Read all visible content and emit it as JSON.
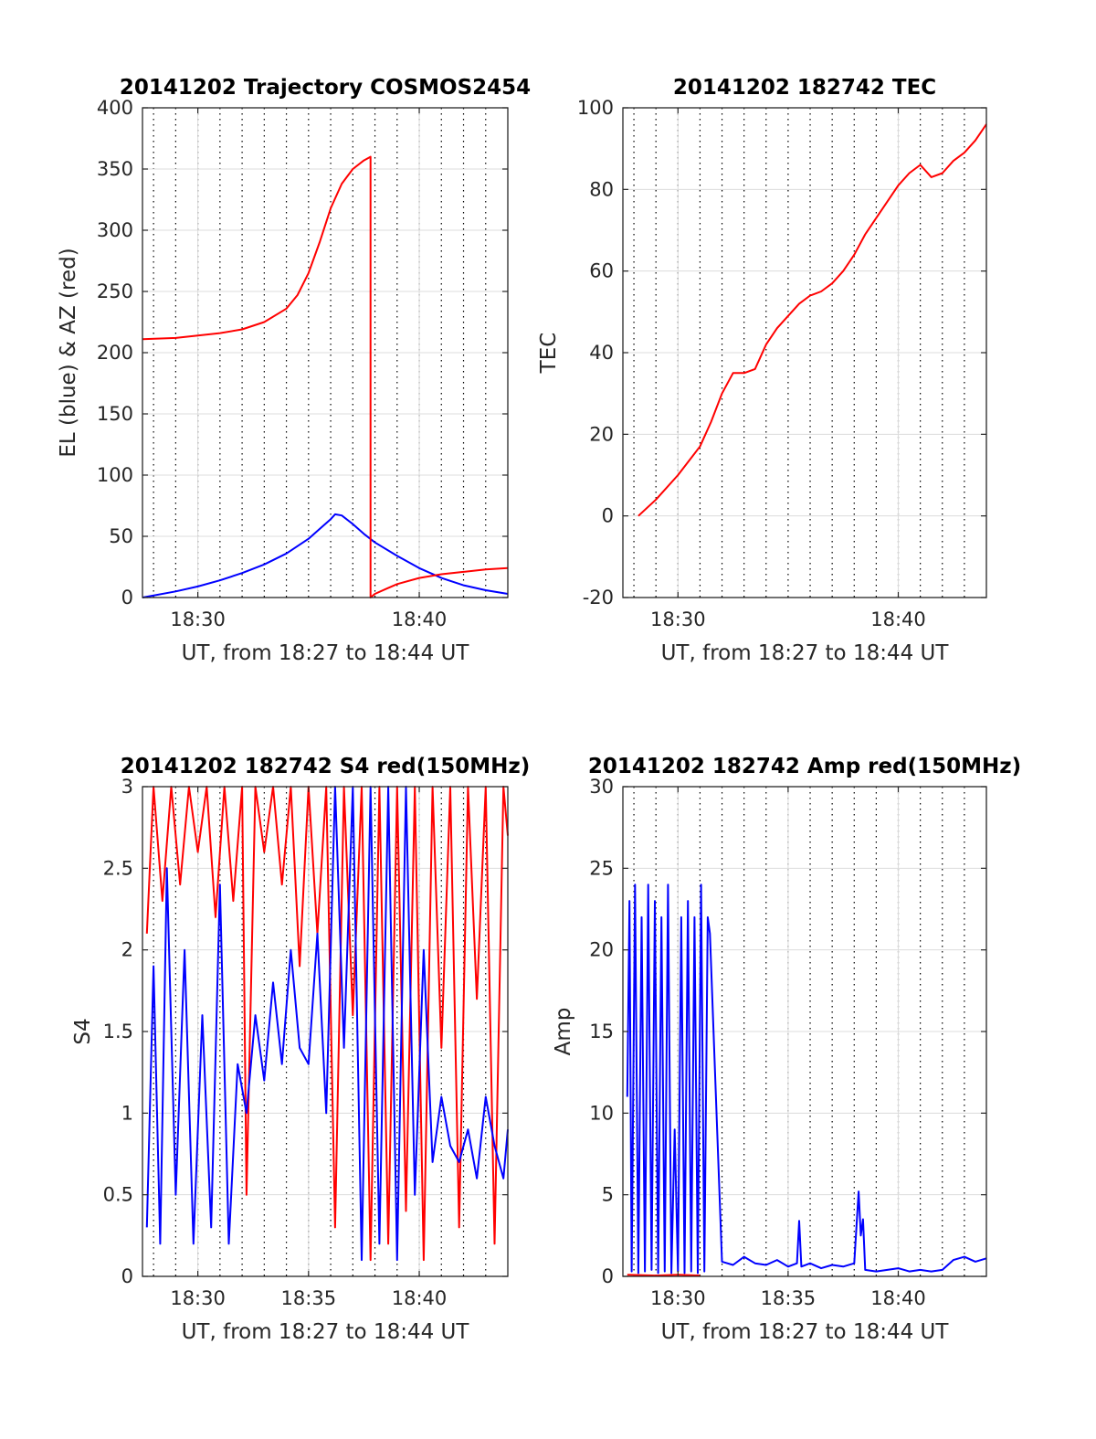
{
  "figure": {
    "background": "#ffffff"
  },
  "chart_data": [
    {
      "type": "line",
      "title": "20141202 Trajectory COSMOS2454",
      "xlabel": "UT, from 18:27 to 18:44 UT",
      "ylabel": "EL (blue) & AZ (red)",
      "xlim": [
        27.5,
        44.0
      ],
      "ylim": [
        0,
        400
      ],
      "yticks": [
        0,
        50,
        100,
        150,
        200,
        250,
        300,
        350,
        400
      ],
      "ytick_labels": [
        "0",
        "50",
        "100",
        "150",
        "200",
        "250",
        "300",
        "350",
        "400"
      ],
      "xticks": [
        30,
        40
      ],
      "xtick_labels": [
        "18:30",
        "18:40"
      ],
      "minor_x_dotted_every_min": true,
      "grid": true,
      "series": [
        {
          "name": "EL",
          "color": "#0000ff",
          "x": [
            27.5,
            29,
            30,
            31,
            32,
            33,
            34,
            35,
            35.5,
            36,
            36.2,
            36.5,
            37,
            37.5,
            38,
            39,
            40,
            41,
            42,
            43,
            44
          ],
          "y": [
            0,
            5,
            9,
            14,
            20,
            27,
            36,
            48,
            56,
            64,
            68,
            67,
            60,
            52,
            45,
            34,
            24,
            16,
            10,
            6,
            3
          ]
        },
        {
          "name": "AZ",
          "color": "#ff0000",
          "x": [
            27.5,
            29,
            30,
            31,
            32,
            33,
            34,
            34.5,
            35,
            35.5,
            36,
            36.5,
            37,
            37.5,
            37.8,
            37.8,
            38,
            38.5,
            39,
            40,
            41,
            42,
            43,
            44
          ],
          "y": [
            211,
            212,
            214,
            216,
            219,
            225,
            236,
            247,
            265,
            290,
            318,
            338,
            350,
            357,
            360,
            0,
            3,
            7,
            11,
            16,
            19,
            21,
            23,
            24
          ]
        }
      ]
    },
    {
      "type": "line",
      "title": "20141202 182742 TEC",
      "xlabel": "UT, from 18:27 to 18:44 UT",
      "ylabel": "TEC",
      "xlim": [
        27.5,
        44.0
      ],
      "ylim": [
        -20,
        100
      ],
      "yticks": [
        -20,
        0,
        20,
        40,
        60,
        80,
        100
      ],
      "ytick_labels": [
        "-20",
        "0",
        "20",
        "40",
        "60",
        "80",
        "100"
      ],
      "xticks": [
        30,
        40
      ],
      "xtick_labels": [
        "18:30",
        "18:40"
      ],
      "minor_x_dotted_every_min": true,
      "grid": true,
      "series": [
        {
          "name": "TEC",
          "color": "#ff0000",
          "x": [
            28.2,
            29,
            30,
            31,
            31.5,
            32,
            32.5,
            33,
            33.5,
            34,
            34.5,
            35,
            35.5,
            36,
            36.5,
            37,
            37.5,
            38,
            38.5,
            39,
            39.5,
            40,
            40.5,
            41,
            41.5,
            42,
            42.5,
            43,
            43.5,
            44
          ],
          "y": [
            0,
            4,
            10,
            17,
            23,
            30,
            35,
            35,
            36,
            42,
            46,
            49,
            52,
            54,
            55,
            57,
            60,
            64,
            69,
            73,
            77,
            81,
            84,
            86,
            83,
            84,
            87,
            89,
            92,
            96
          ]
        }
      ]
    },
    {
      "type": "line",
      "title": "20141202 182742 S4 red(150MHz)",
      "xlabel": "UT, from 18:27 to 18:44 UT",
      "ylabel": "S4",
      "xlim": [
        27.5,
        44.0
      ],
      "ylim": [
        0,
        3
      ],
      "yticks": [
        0,
        0.5,
        1,
        1.5,
        2,
        2.5,
        3
      ],
      "ytick_labels": [
        "0",
        "0.5",
        "1",
        "1.5",
        "2",
        "2.5",
        "3"
      ],
      "xticks": [
        30,
        35,
        40
      ],
      "xtick_labels": [
        "18:30",
        "18:35",
        "18:40"
      ],
      "minor_x_dotted_every_min": true,
      "grid": true,
      "series": [
        {
          "name": "S4 red",
          "color": "#ff0000",
          "x": [
            27.7,
            28,
            28.4,
            28.8,
            29.2,
            29.6,
            30,
            30.4,
            30.8,
            31.2,
            31.6,
            32,
            32.2,
            32.6,
            33,
            33.4,
            33.8,
            34.2,
            34.6,
            35,
            35.4,
            35.8,
            36.2,
            36.6,
            37,
            37.4,
            37.8,
            38.2,
            38.6,
            39,
            39.4,
            39.8,
            40.2,
            40.6,
            41,
            41.4,
            41.8,
            42.2,
            42.6,
            43,
            43.4,
            43.8,
            44
          ],
          "y": [
            2.1,
            3,
            2.3,
            3,
            2.4,
            3,
            2.6,
            3,
            2.2,
            3,
            2.3,
            3,
            0.5,
            3,
            2.6,
            3,
            2.4,
            3,
            1.9,
            3,
            2.1,
            3,
            0.3,
            3,
            1.6,
            3,
            0.1,
            3,
            0.2,
            3,
            0.4,
            3,
            0.1,
            3,
            1.4,
            3,
            0.3,
            3,
            1.7,
            3,
            0.2,
            3,
            2.7
          ]
        },
        {
          "name": "S4 blue",
          "color": "#0000ff",
          "x": [
            27.7,
            28,
            28.3,
            28.6,
            29,
            29.4,
            29.8,
            30.2,
            30.6,
            31,
            31.4,
            31.8,
            32.2,
            32.6,
            33,
            33.4,
            33.8,
            34.2,
            34.6,
            35,
            35.4,
            35.8,
            36.2,
            36.6,
            37,
            37.4,
            37.8,
            38.2,
            38.6,
            39,
            39.4,
            39.8,
            40.2,
            40.6,
            41,
            41.4,
            41.8,
            42.2,
            42.6,
            43,
            43.4,
            43.8,
            44
          ],
          "y": [
            0.3,
            1.9,
            0.2,
            2.5,
            0.5,
            2.0,
            0.2,
            1.6,
            0.3,
            2.4,
            0.2,
            1.3,
            1.0,
            1.6,
            1.2,
            1.8,
            1.3,
            2.0,
            1.4,
            1.3,
            2.1,
            1.0,
            3,
            1.4,
            3,
            0.1,
            3,
            0.2,
            3,
            0.1,
            3,
            0.5,
            2.0,
            0.7,
            1.1,
            0.8,
            0.7,
            0.9,
            0.6,
            1.1,
            0.8,
            0.6,
            0.9
          ]
        }
      ]
    },
    {
      "type": "line",
      "title": "20141202 182742 Amp red(150MHz)",
      "xlabel": "UT, from 18:27 to 18:44 UT",
      "ylabel": "Amp",
      "xlim": [
        27.5,
        44.0
      ],
      "ylim": [
        0,
        30
      ],
      "yticks": [
        0,
        5,
        10,
        15,
        20,
        25,
        30
      ],
      "ytick_labels": [
        "0",
        "5",
        "10",
        "15",
        "20",
        "25",
        "30"
      ],
      "xticks": [
        30,
        35,
        40
      ],
      "xtick_labels": [
        "18:30",
        "18:35",
        "18:40"
      ],
      "minor_x_dotted_every_min": true,
      "grid": true,
      "series": [
        {
          "name": "Amp red",
          "color": "#ff0000",
          "x": [
            27.7,
            29,
            30,
            31
          ],
          "y": [
            0.1,
            0.05,
            0.1,
            0.05
          ]
        },
        {
          "name": "Amp blue",
          "color": "#0000ff",
          "x": [
            27.7,
            27.8,
            27.9,
            28.05,
            28.2,
            28.35,
            28.5,
            28.65,
            28.8,
            28.95,
            29.1,
            29.25,
            29.4,
            29.55,
            29.7,
            29.85,
            30.0,
            30.15,
            30.3,
            30.45,
            30.6,
            30.75,
            30.9,
            31.05,
            31.2,
            31.35,
            31.45,
            32,
            32.5,
            33,
            33.5,
            34,
            34.5,
            35,
            35.4,
            35.5,
            35.6,
            36,
            36.5,
            37,
            37.5,
            38,
            38.2,
            38.3,
            38.4,
            38.5,
            39,
            39.5,
            40,
            40.5,
            41,
            41.5,
            42,
            42.5,
            43,
            43.5,
            44
          ],
          "y": [
            11,
            23,
            0.3,
            24,
            0.2,
            22,
            0.3,
            24,
            0.4,
            23,
            0.2,
            22,
            0.3,
            24,
            0.2,
            9,
            0.3,
            22,
            0.2,
            23,
            0.3,
            22,
            0.2,
            24,
            0.3,
            22,
            21,
            0.9,
            0.7,
            1.2,
            0.8,
            0.7,
            1.0,
            0.6,
            0.8,
            3.4,
            0.6,
            0.8,
            0.5,
            0.7,
            0.6,
            0.8,
            5.2,
            2.5,
            3.5,
            0.4,
            0.3,
            0.4,
            0.5,
            0.3,
            0.4,
            0.3,
            0.4,
            1.0,
            1.2,
            0.9,
            1.1
          ]
        }
      ]
    }
  ]
}
